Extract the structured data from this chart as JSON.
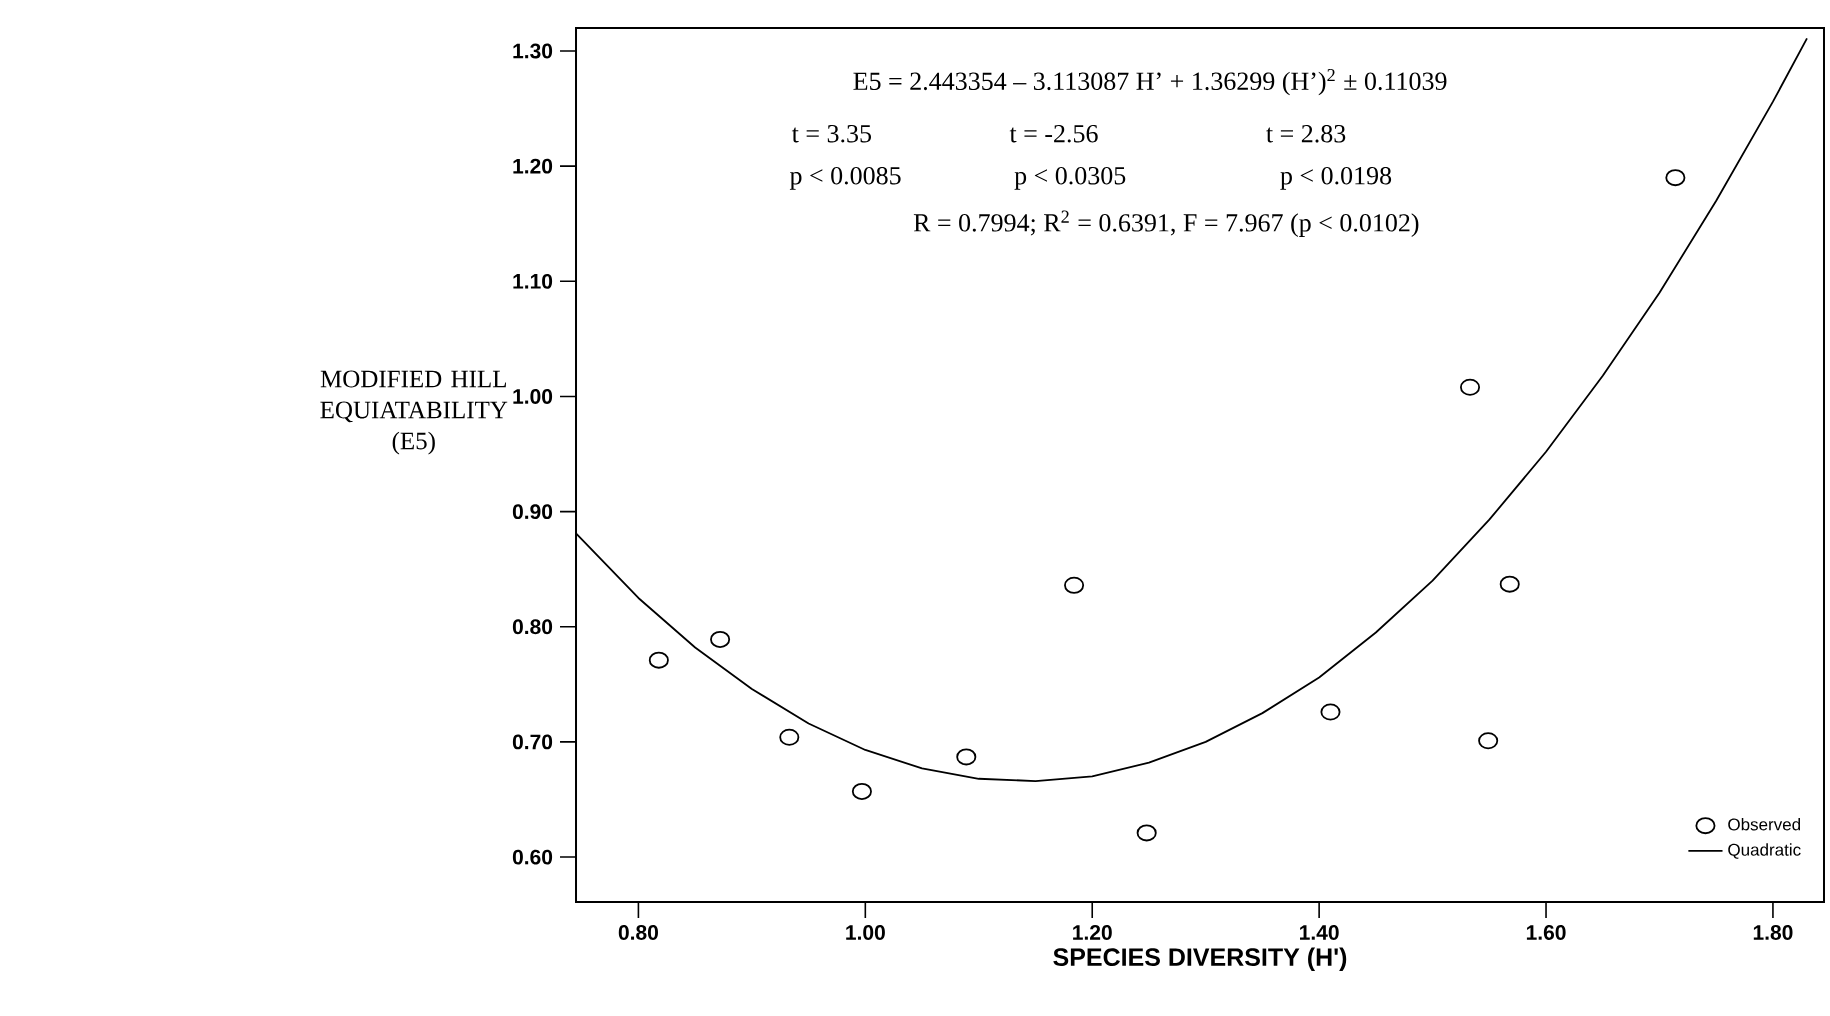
{
  "chart_data": {
    "type": "scatter",
    "xlabel": "SPECIES DIVERSITY (H')",
    "ylabel": "MODIFIED HILL EQUIATABILITY (E5)",
    "xlim": [
      0.745,
      1.845
    ],
    "ylim": [
      0.561,
      1.32
    ],
    "xticks": [
      {
        "value": 0.8,
        "label": "0.80"
      },
      {
        "value": 1.0,
        "label": "1.00"
      },
      {
        "value": 1.2,
        "label": "1.20"
      },
      {
        "value": 1.4,
        "label": "1.40"
      },
      {
        "value": 1.6,
        "label": "1.60"
      },
      {
        "value": 1.8,
        "label": "1.80"
      }
    ],
    "yticks": [
      {
        "value": 0.6,
        "label": "0.60"
      },
      {
        "value": 0.7,
        "label": "0.70"
      },
      {
        "value": 0.8,
        "label": "0.80"
      },
      {
        "value": 0.9,
        "label": "0.90"
      },
      {
        "value": 1.0,
        "label": "1.00"
      },
      {
        "value": 1.1,
        "label": "1.10"
      },
      {
        "value": 1.2,
        "label": "1.20"
      },
      {
        "value": 1.3,
        "label": "1.30"
      }
    ],
    "legend": "bottom right",
    "annotations": [
      "E5 = 2.443354 – 3.113087 H’ + 1.36299 (H’)$^{2}$ ± 0.11039",
      "t = 3.35",
      "t = -2.56",
      "t = 2.83",
      "p < 0.0085",
      "p < 0.0305",
      "p < 0.0198",
      "R = 0.7994;   R$^{2}$ = 0.6391, F = 7.967 (p < 0.0102)"
    ],
    "series": [
      {
        "name": "Observed",
        "color": "#000000",
        "marker": "circle",
        "x": [
          0.818,
          0.872,
          0.933,
          0.997,
          1.089,
          1.184,
          1.248,
          1.41,
          1.533,
          1.549,
          1.568,
          1.714
        ],
        "values": [
          0.771,
          0.789,
          0.704,
          0.657,
          0.687,
          0.836,
          0.621,
          0.726,
          1.008,
          0.701,
          0.837,
          1.19
        ]
      },
      {
        "name": "Quadratic",
        "type": "line",
        "color": "#000000",
        "line_style": "solid",
        "x": [
          0.745,
          0.8,
          0.85,
          0.9,
          0.95,
          1.0,
          1.05,
          1.1,
          1.15,
          1.2,
          1.25,
          1.3,
          1.35,
          1.4,
          1.45,
          1.5,
          1.55,
          1.6,
          1.65,
          1.7,
          1.75,
          1.8,
          1.83
        ],
        "values": [
          0.881,
          0.825,
          0.782,
          0.746,
          0.716,
          0.693,
          0.677,
          0.668,
          0.666,
          0.67,
          0.682,
          0.7,
          0.725,
          0.756,
          0.795,
          0.84,
          0.893,
          0.952,
          1.018,
          1.09,
          1.17,
          1.256,
          1.311
        ]
      }
    ]
  }
}
